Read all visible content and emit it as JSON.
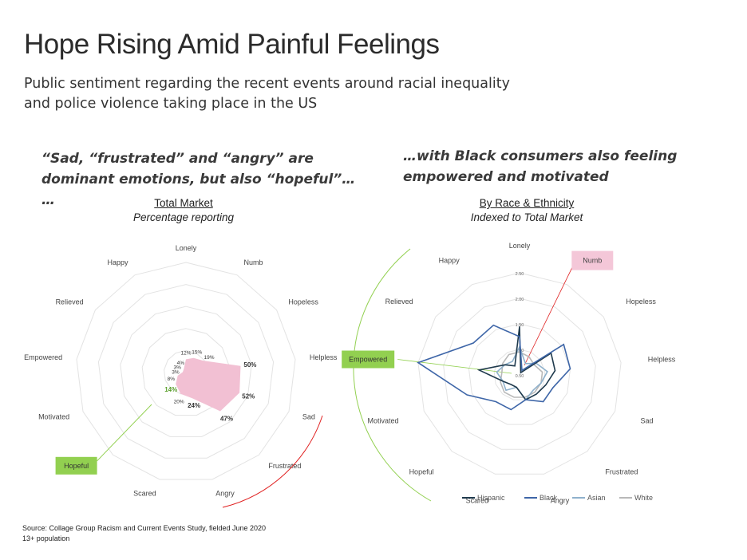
{
  "header": {
    "title": "Hope Rising Amid Painful Feelings",
    "subtitle": "Public sentiment regarding the recent events around racial inequality and police violence taking place in the US"
  },
  "quotes": {
    "left": "“Sad, “frustrated” and “angry” are dominant emotions, but also “hopeful”… …",
    "right": "…with Black consumers also feeling empowered and motivated"
  },
  "left_head": {
    "title": "Total Market",
    "subtitle": "Percentage reporting"
  },
  "right_head": {
    "title": "By Race & Ethnicity",
    "subtitle": "Indexed to Total Market"
  },
  "footer": {
    "source": "Source: Collage Group Racism and Current Events Study, fielded June 2020",
    "population": "13+ population"
  },
  "colors": {
    "total_fill": "#f2c0d3",
    "hopeful_box": "#92d050",
    "numb_box": "#f4c7d8",
    "hispanic": "#1f3a4d",
    "black": "#3e66a8",
    "asian": "#8fb1cc",
    "white": "#b9b9b9",
    "hopeful_label": "#5aa02c",
    "red_arc": "#e02020",
    "green_arc": "#92d050"
  },
  "chart_data": [
    {
      "type": "radar",
      "title": "Total Market",
      "subtitle": "Percentage reporting",
      "categories": [
        "Lonely",
        "Numb",
        "Hopeless",
        "Helpless",
        "Sad",
        "Frustrated",
        "Angry",
        "Scared",
        "Hopeful",
        "Motivated",
        "Empowered",
        "Relieved",
        "Happy"
      ],
      "series": [
        {
          "values": [
            12,
            15,
            19,
            50,
            52,
            47,
            24,
            20,
            14,
            8,
            3,
            3,
            4
          ]
        }
      ],
      "value_labels": [
        "12%",
        "15%",
        "19%",
        "50%",
        "52%",
        "47%",
        "24%",
        "20%",
        "14%",
        "8%",
        "3%",
        "3%",
        "4%"
      ],
      "highlight": "Hopeful",
      "rmax": 100
    },
    {
      "type": "radar",
      "title": "By Race & Ethnicity",
      "subtitle": "Indexed to Total Market",
      "categories": [
        "Lonely",
        "Numb",
        "Hopeless",
        "Helpless",
        "Sad",
        "Frustrated",
        "Angry",
        "Scared",
        "Hopeful",
        "Motivated",
        "Empowered",
        "Relieved",
        "Happy"
      ],
      "ticks": [
        "0.50",
        "1.00",
        "1.50",
        "2.00",
        "2.50"
      ],
      "tick_values": [
        0.5,
        1.0,
        1.5,
        2.0,
        2.5
      ],
      "rmax": 2.5,
      "rmin": 0.5,
      "highlights": [
        "Numb",
        "Empowered"
      ],
      "series": [
        {
          "name": "Hispanic",
          "values": [
            1.45,
            0.55,
            1.25,
            1.2,
            1.05,
            1.0,
            1.0,
            0.75,
            0.75,
            0.85,
            1.3,
            0.85,
            0.7
          ]
        },
        {
          "name": "Black",
          "values": [
            1.25,
            0.6,
            1.55,
            1.5,
            1.2,
            1.2,
            1.0,
            1.2,
            1.2,
            1.6,
            2.5,
            1.6,
            1.6
          ]
        },
        {
          "name": "Asian",
          "values": [
            1.05,
            0.75,
            0.9,
            1.05,
            0.95,
            0.9,
            1.0,
            0.75,
            0.9,
            0.85,
            0.95,
            0.85,
            0.8
          ]
        },
        {
          "name": "White",
          "values": [
            0.95,
            0.9,
            0.85,
            0.95,
            0.95,
            0.95,
            0.95,
            0.95,
            0.95,
            0.9,
            0.85,
            0.9,
            0.95
          ]
        }
      ]
    }
  ]
}
